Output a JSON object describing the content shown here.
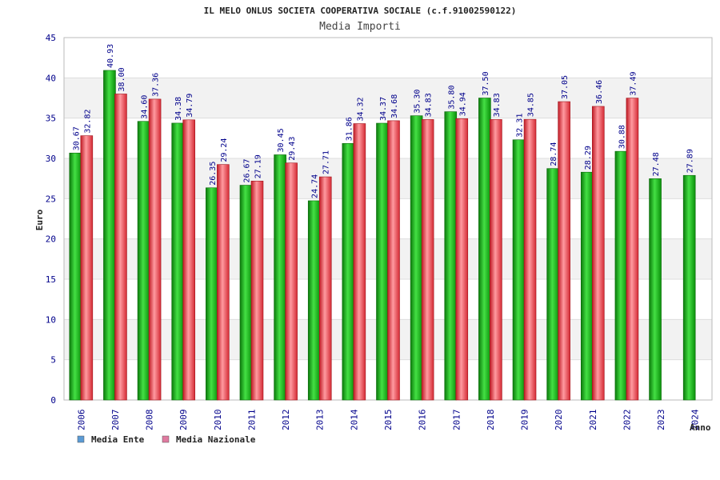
{
  "chart_data": {
    "type": "bar",
    "title": "IL MELO ONLUS SOCIETA COOPERATIVA SOCIALE (c.f.91002590122)",
    "subtitle": "Media Importi",
    "xlabel": "Anno",
    "ylabel": "Euro",
    "ylim": [
      0,
      45
    ],
    "yticks": [
      0,
      5,
      10,
      15,
      20,
      25,
      30,
      35,
      40,
      45
    ],
    "grid": true,
    "legend_position": "bottom-left",
    "categories": [
      "2006",
      "2007",
      "2008",
      "2009",
      "2010",
      "2011",
      "2012",
      "2013",
      "2014",
      "2015",
      "2016",
      "2017",
      "2018",
      "2019",
      "2020",
      "2021",
      "2022",
      "2023",
      "2024"
    ],
    "series": [
      {
        "name": "Media Ente",
        "color": "#1aae1a",
        "legend_color": "#5b9bd5",
        "values": [
          30.67,
          40.93,
          34.6,
          34.38,
          26.35,
          26.67,
          30.45,
          24.74,
          31.86,
          34.37,
          35.3,
          35.8,
          37.5,
          32.31,
          28.74,
          28.29,
          30.88,
          27.48,
          27.89
        ],
        "labels": [
          "30.67",
          "40.93",
          "34.60",
          "34.38",
          "26.35",
          "26.67",
          "30.45",
          "24.74",
          "31.86",
          "34.37",
          "35.30",
          "35.80",
          "37.50",
          "32.31",
          "28.74",
          "28.29",
          "30.88",
          "27.48",
          "27.89"
        ]
      },
      {
        "name": "Media Nazionale",
        "color": "#e8303a",
        "legend_color": "#e07aa0",
        "values": [
          32.82,
          38.0,
          37.36,
          34.79,
          29.24,
          27.19,
          29.43,
          27.71,
          34.32,
          34.68,
          34.83,
          34.94,
          34.83,
          34.85,
          37.05,
          36.46,
          37.49,
          null,
          null
        ],
        "labels": [
          "32.82",
          "38.00",
          "37.36",
          "34.79",
          "29.24",
          "27.19",
          "29.43",
          "27.71",
          "34.32",
          "34.68",
          "34.83",
          "34.94",
          "34.83",
          "34.85",
          "37.05",
          "36.46",
          "37.49",
          "",
          ""
        ]
      }
    ]
  }
}
